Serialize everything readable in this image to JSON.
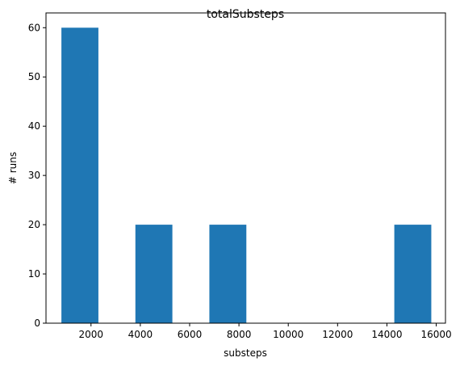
{
  "chart_data": {
    "type": "bar",
    "title": "totalSubsteps",
    "xlabel": "substeps",
    "ylabel": "# runs",
    "xlim": [
      175,
      16375
    ],
    "ylim": [
      0,
      63
    ],
    "xticks": [
      2000,
      4000,
      6000,
      8000,
      10000,
      12000,
      14000,
      16000
    ],
    "yticks": [
      0,
      10,
      20,
      30,
      40,
      50,
      60
    ],
    "bins": [
      {
        "x0": 800,
        "x1": 2300,
        "value": 60
      },
      {
        "x0": 2300,
        "x1": 3800,
        "value": 0
      },
      {
        "x0": 3800,
        "x1": 5300,
        "value": 20
      },
      {
        "x0": 5300,
        "x1": 6800,
        "value": 0
      },
      {
        "x0": 6800,
        "x1": 8300,
        "value": 20
      },
      {
        "x0": 8300,
        "x1": 9800,
        "value": 0
      },
      {
        "x0": 9800,
        "x1": 11300,
        "value": 0
      },
      {
        "x0": 11300,
        "x1": 12800,
        "value": 0
      },
      {
        "x0": 12800,
        "x1": 14300,
        "value": 0
      },
      {
        "x0": 14300,
        "x1": 15800,
        "value": 20
      }
    ],
    "bar_color": "#1f77b4",
    "grid": false,
    "legend": "none"
  }
}
